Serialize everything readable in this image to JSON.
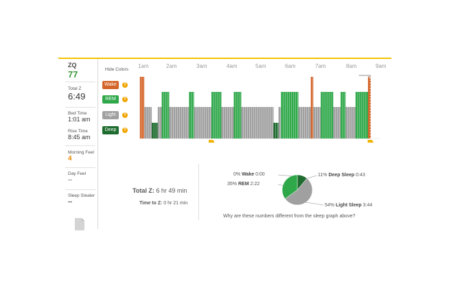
{
  "sidebar": {
    "zq_label": "ZQ",
    "zq_value": "77",
    "total_z_label": "Total Z",
    "total_z_value": "6:49",
    "bed_time_label": "Bed Time",
    "bed_time_value": "1:01 am",
    "rise_time_label": "Rise Time",
    "rise_time_value": "8:45 am",
    "morning_feel_label": "Morning Feel",
    "morning_feel_value": "4",
    "day_feel_label": "Day Feel",
    "day_feel_value": "--",
    "sleep_stealer_label": "Sleep Stealer",
    "sleep_stealer_value": "--"
  },
  "legend": {
    "hide_colors": "Hide Colors",
    "items": [
      {
        "label": "Wake",
        "color": "#d4652a"
      },
      {
        "label": "REM",
        "color": "#2fa84a"
      },
      {
        "label": "Light",
        "color": "#a0a0a0"
      },
      {
        "label": "Deep",
        "color": "#1d6b2e"
      }
    ],
    "help_icon": "?"
  },
  "hours": [
    "1am",
    "2am",
    "3am",
    "4am",
    "5am",
    "6am",
    "7am",
    "8am",
    "9am"
  ],
  "chart_data": {
    "type": "bar",
    "stages": [
      "Wake",
      "REM",
      "Light",
      "Deep"
    ],
    "segments": [
      {
        "stage": "Wake",
        "start": "1:01",
        "end": "1:10"
      },
      {
        "stage": "Light",
        "start": "1:10",
        "end": "1:25"
      },
      {
        "stage": "Deep",
        "start": "1:25",
        "end": "1:37"
      },
      {
        "stage": "Light",
        "start": "1:37",
        "end": "1:45"
      },
      {
        "stage": "REM",
        "start": "1:45",
        "end": "2:00"
      },
      {
        "stage": "Light",
        "start": "2:00",
        "end": "2:40"
      },
      {
        "stage": "REM",
        "start": "2:40",
        "end": "2:50"
      },
      {
        "stage": "Light",
        "start": "2:50",
        "end": "3:25"
      },
      {
        "stage": "REM",
        "start": "3:25",
        "end": "3:45"
      },
      {
        "stage": "Light",
        "start": "3:45",
        "end": "4:10"
      },
      {
        "stage": "REM",
        "start": "4:10",
        "end": "4:25"
      },
      {
        "stage": "Light",
        "start": "4:25",
        "end": "5:30"
      },
      {
        "stage": "Deep",
        "start": "5:30",
        "end": "5:40"
      },
      {
        "stage": "Light",
        "start": "5:40",
        "end": "5:45"
      },
      {
        "stage": "REM",
        "start": "5:45",
        "end": "6:20"
      },
      {
        "stage": "Light",
        "start": "6:20",
        "end": "6:45"
      },
      {
        "stage": "Wake",
        "start": "6:45",
        "end": "6:50"
      },
      {
        "stage": "Light",
        "start": "6:50",
        "end": "7:05"
      },
      {
        "stage": "REM",
        "start": "7:05",
        "end": "7:30"
      },
      {
        "stage": "Light",
        "start": "7:30",
        "end": "7:45"
      },
      {
        "stage": "REM",
        "start": "7:45",
        "end": "7:55"
      },
      {
        "stage": "Light",
        "start": "7:55",
        "end": "8:15"
      },
      {
        "stage": "REM",
        "start": "8:15",
        "end": "8:40"
      },
      {
        "stage": "Wake",
        "start": "8:40",
        "end": "8:45"
      }
    ],
    "pie": [
      {
        "label": "Wake",
        "value": 0,
        "pct": "0%",
        "time": "0:00",
        "color": "#d4652a"
      },
      {
        "label": "Deep Sleep",
        "value": 11,
        "pct": "11%",
        "time": "0:43",
        "color": "#1d6b2e"
      },
      {
        "label": "Light Sleep",
        "value": 54,
        "pct": "54%",
        "time": "3:44",
        "color": "#a0a0a0"
      },
      {
        "label": "REM",
        "value": 35,
        "pct": "35%",
        "time": "2:22",
        "color": "#2fa84a"
      }
    ]
  },
  "summary": {
    "total_z_label": "Total Z:",
    "total_z_value": "6 hr 49 min",
    "time_to_z_label": "Time to Z:",
    "time_to_z_value": "0 hr 21 min",
    "why_link": "Why are these numbers different from the sleep graph above?"
  },
  "colors": {
    "accent_line": "#f2c200",
    "marker": "#f2b200"
  }
}
